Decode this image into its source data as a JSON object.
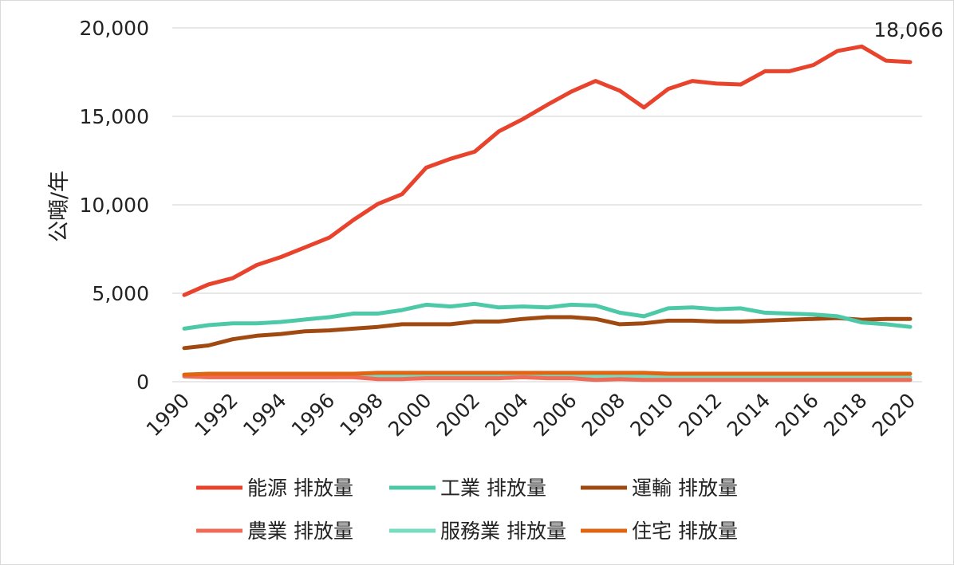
{
  "chart_data": {
    "type": "line",
    "ylabel": "公噸/年",
    "ylim": [
      0,
      20000
    ],
    "yticks": [
      0,
      5000,
      10000,
      15000,
      20000
    ],
    "ytick_labels": [
      "0",
      "5,000",
      "10,000",
      "15,000",
      "20,000"
    ],
    "x": [
      1990,
      1991,
      1992,
      1993,
      1994,
      1995,
      1996,
      1997,
      1998,
      1999,
      2000,
      2001,
      2002,
      2003,
      2004,
      2005,
      2006,
      2007,
      2008,
      2009,
      2010,
      2011,
      2012,
      2013,
      2014,
      2015,
      2016,
      2017,
      2018,
      2019,
      2020
    ],
    "xtick_labels": [
      "1990",
      "1992",
      "1994",
      "1996",
      "1998",
      "2000",
      "2002",
      "2004",
      "2006",
      "2008",
      "2010",
      "2012",
      "2014",
      "2016",
      "2018",
      "2020"
    ],
    "grid": "horizontal",
    "legend_position": "bottom",
    "annotation": "18,066",
    "series": [
      {
        "name": "能源 排放量",
        "color": "#e8432d",
        "values": [
          4900,
          5500,
          5850,
          6600,
          7050,
          7600,
          8150,
          9150,
          10050,
          10600,
          12100,
          12600,
          13000,
          14150,
          14850,
          15650,
          16400,
          17000,
          16450,
          15500,
          16550,
          17000,
          16850,
          16800,
          17550,
          17550,
          17900,
          18700,
          18950,
          18150,
          18066
        ]
      },
      {
        "name": "工業 排放量",
        "color": "#4ec9a8",
        "values": [
          3000,
          3200,
          3300,
          3300,
          3380,
          3520,
          3650,
          3850,
          3850,
          4050,
          4350,
          4250,
          4400,
          4200,
          4250,
          4200,
          4350,
          4300,
          3900,
          3700,
          4150,
          4200,
          4100,
          4150,
          3900,
          3850,
          3800,
          3700,
          3350,
          3250,
          3100
        ]
      },
      {
        "name": "運輸 排放量",
        "color": "#a04a12",
        "values": [
          1900,
          2050,
          2400,
          2600,
          2700,
          2850,
          2900,
          3000,
          3100,
          3250,
          3250,
          3250,
          3400,
          3400,
          3550,
          3650,
          3650,
          3550,
          3250,
          3300,
          3450,
          3450,
          3400,
          3400,
          3450,
          3500,
          3550,
          3600,
          3500,
          3550,
          3550
        ]
      },
      {
        "name": "農業 排放量",
        "color": "#ef6a57",
        "values": [
          300,
          250,
          250,
          250,
          250,
          250,
          250,
          250,
          150,
          150,
          200,
          200,
          200,
          200,
          250,
          200,
          200,
          100,
          150,
          100,
          100,
          100,
          100,
          100,
          100,
          100,
          100,
          100,
          100,
          100,
          100
        ]
      },
      {
        "name": "服務業 排放量",
        "color": "#78dcc0",
        "values": [
          300,
          250,
          250,
          250,
          250,
          250,
          250,
          300,
          300,
          300,
          300,
          300,
          300,
          300,
          300,
          300,
          300,
          300,
          300,
          300,
          300,
          300,
          300,
          300,
          300,
          300,
          300,
          300,
          250,
          250,
          250
        ]
      },
      {
        "name": "住宅 排放量",
        "color": "#e06412",
        "values": [
          400,
          450,
          450,
          450,
          450,
          450,
          450,
          450,
          500,
          500,
          500,
          500,
          500,
          500,
          500,
          500,
          500,
          500,
          500,
          500,
          450,
          450,
          450,
          450,
          450,
          450,
          450,
          450,
          450,
          450,
          450
        ]
      }
    ]
  }
}
